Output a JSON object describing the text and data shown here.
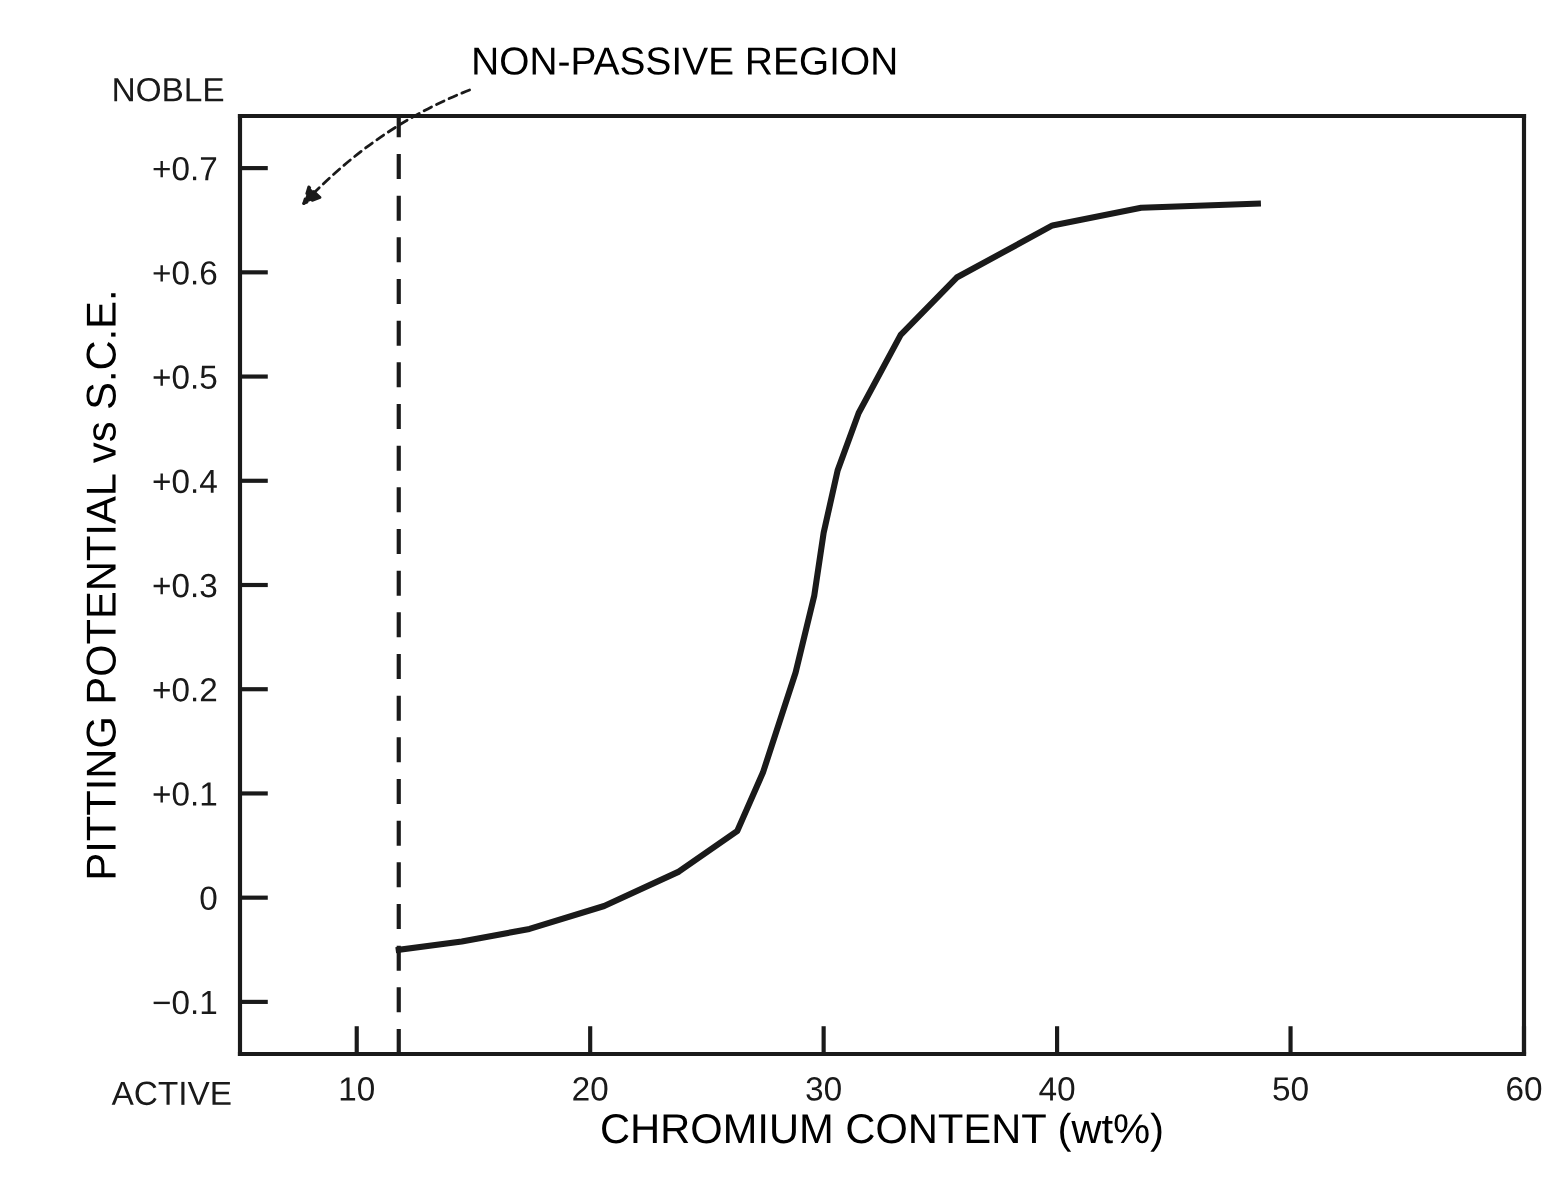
{
  "chart_data": {
    "type": "line",
    "xlabel": "CHROMIUM CONTENT (wt%)",
    "ylabel": "PITTING POTENTIAL vs S.C.E.",
    "annotations": [
      "NON-PASSIVE REGION",
      "NOBLE",
      "ACTIVE"
    ],
    "x": [
      11.8,
      14.5,
      17.4,
      20.6,
      23.8,
      26.3,
      27.4,
      28.8,
      29.6,
      30.0,
      30.6,
      31.5,
      33.3,
      35.7,
      39.8,
      43.6,
      48.6
    ],
    "series": [
      {
        "color": "#1a1a1a",
        "values": [
          -0.05,
          -0.042,
          -0.03,
          -0.008,
          0.025,
          0.064,
          0.12,
          0.216,
          0.29,
          0.35,
          0.41,
          0.465,
          0.54,
          0.595,
          0.645,
          0.662,
          0.666
        ]
      }
    ],
    "xlim": [
      5,
      60
    ],
    "xticks": [
      10,
      20,
      30,
      40,
      50,
      {
        "value": 60,
        "label": "60"
      }
    ],
    "ylim": [
      -0.15,
      0.75
    ],
    "yticks": [
      {
        "value": -0.1,
        "label": "−0.1"
      },
      0,
      {
        "value": 0.1,
        "label": "+0.1"
      },
      {
        "value": 0.2,
        "label": "+0.2"
      },
      {
        "value": 0.3,
        "label": "+0.3"
      },
      {
        "value": 0.4,
        "label": "+0.4"
      },
      {
        "value": 0.5,
        "label": "+0.5"
      },
      {
        "value": 0.6,
        "label": "+0.6"
      },
      {
        "value": 0.7,
        "label": "+0.7"
      }
    ],
    "ref_lines": [
      {
        "axis": "x",
        "value": 11.8,
        "color": "#1a1a1a",
        "line_style": "dashed"
      }
    ],
    "grid": false,
    "legend": false,
    "marker": "none",
    "line_style": "solid"
  }
}
